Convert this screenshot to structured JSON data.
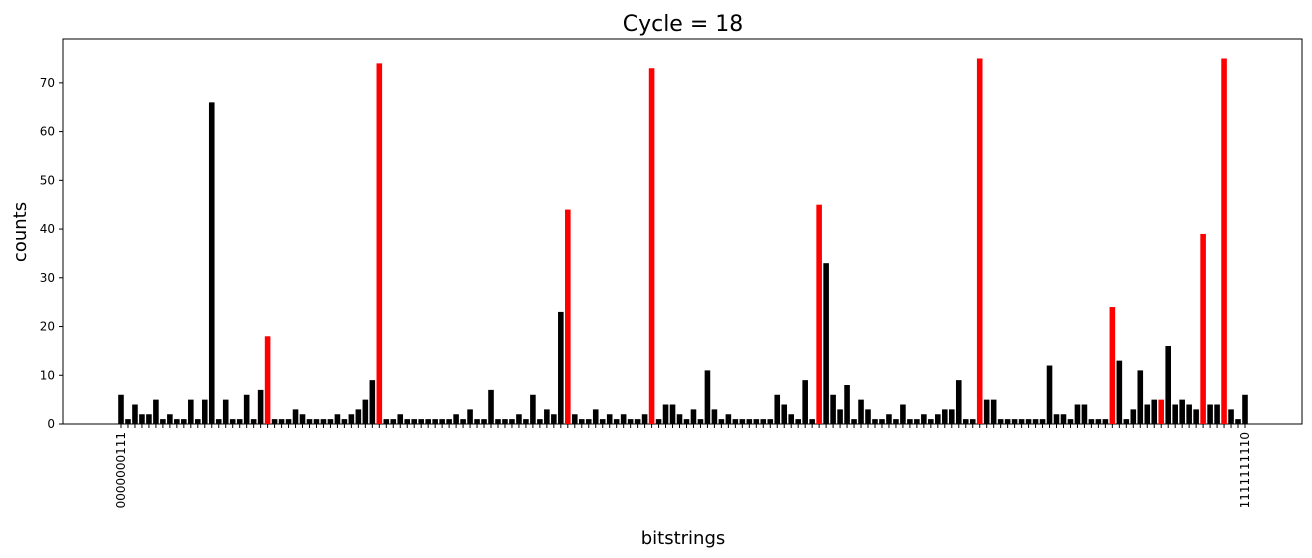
{
  "chart_data": {
    "type": "bar",
    "title": "Cycle = 18",
    "xlabel": "bitstrings",
    "ylabel": "counts",
    "categories": [
      "0000000111",
      null,
      null,
      null,
      null,
      null,
      null,
      null,
      null,
      null,
      null,
      null,
      null,
      null,
      null,
      null,
      null,
      null,
      null,
      null,
      null,
      null,
      null,
      null,
      null,
      null,
      null,
      null,
      null,
      null,
      null,
      null,
      null,
      null,
      null,
      null,
      null,
      null,
      null,
      null,
      null,
      null,
      null,
      null,
      null,
      null,
      null,
      null,
      null,
      null,
      null,
      null,
      null,
      null,
      null,
      null,
      null,
      null,
      null,
      null,
      null,
      null,
      null,
      null,
      null,
      null,
      null,
      null,
      null,
      null,
      null,
      null,
      null,
      null,
      null,
      null,
      null,
      null,
      null,
      null,
      null,
      null,
      null,
      null,
      null,
      null,
      null,
      null,
      null,
      null,
      null,
      null,
      null,
      null,
      null,
      null,
      null,
      null,
      null,
      null,
      null,
      null,
      null,
      null,
      null,
      null,
      null,
      null,
      null,
      null,
      null,
      null,
      null,
      null,
      null,
      null,
      null,
      null,
      null,
      null,
      null,
      null,
      null,
      null,
      null,
      null,
      null,
      null,
      null,
      null,
      null,
      null,
      null,
      null,
      null,
      null,
      null,
      null,
      null,
      null,
      null,
      null,
      null,
      null,
      null,
      null,
      null,
      null,
      null,
      null,
      null,
      null,
      null,
      null,
      null,
      null,
      null,
      null,
      null,
      null,
      null,
      "1111111110"
    ],
    "values": [
      6,
      1,
      4,
      2,
      2,
      5,
      1,
      2,
      1,
      1,
      5,
      1,
      5,
      66,
      1,
      5,
      1,
      1,
      6,
      1,
      7,
      18,
      1,
      1,
      1,
      3,
      2,
      1,
      1,
      1,
      1,
      2,
      1,
      2,
      3,
      5,
      9,
      74,
      1,
      1,
      2,
      1,
      1,
      1,
      1,
      1,
      1,
      1,
      2,
      1,
      3,
      1,
      1,
      7,
      1,
      1,
      1,
      2,
      1,
      6,
      1,
      3,
      2,
      23,
      44,
      2,
      1,
      1,
      3,
      1,
      2,
      1,
      2,
      1,
      1,
      2,
      73,
      1,
      4,
      4,
      2,
      1,
      3,
      1,
      11,
      3,
      1,
      2,
      1,
      1,
      1,
      1,
      1,
      1,
      6,
      4,
      2,
      1,
      9,
      1,
      45,
      33,
      6,
      3,
      8,
      1,
      5,
      3,
      1,
      1,
      2,
      1,
      4,
      1,
      1,
      2,
      1,
      2,
      3,
      3,
      9,
      1,
      1,
      75,
      5,
      5,
      1,
      1,
      1,
      1,
      1,
      1,
      1,
      12,
      2,
      2,
      1,
      4,
      4,
      1,
      1,
      1,
      24,
      13,
      1,
      3,
      11,
      4,
      5,
      5,
      16,
      4,
      5,
      4,
      3,
      39,
      4,
      4,
      75,
      3,
      1,
      6
    ],
    "colors": [
      "black",
      "black",
      "black",
      "black",
      "black",
      "black",
      "black",
      "black",
      "black",
      "black",
      "black",
      "black",
      "black",
      "black",
      "black",
      "black",
      "black",
      "black",
      "black",
      "black",
      "black",
      "red",
      "black",
      "black",
      "black",
      "black",
      "black",
      "black",
      "black",
      "black",
      "black",
      "black",
      "black",
      "black",
      "black",
      "black",
      "black",
      "red",
      "black",
      "black",
      "black",
      "black",
      "black",
      "black",
      "black",
      "black",
      "black",
      "black",
      "black",
      "black",
      "black",
      "black",
      "black",
      "black",
      "black",
      "black",
      "black",
      "black",
      "black",
      "black",
      "black",
      "black",
      "black",
      "black",
      "red",
      "black",
      "black",
      "black",
      "black",
      "black",
      "black",
      "black",
      "black",
      "black",
      "black",
      "black",
      "red",
      "black",
      "black",
      "black",
      "black",
      "black",
      "black",
      "black",
      "black",
      "black",
      "black",
      "black",
      "black",
      "black",
      "black",
      "black",
      "black",
      "black",
      "black",
      "black",
      "black",
      "black",
      "black",
      "black",
      "red",
      "black",
      "black",
      "black",
      "black",
      "black",
      "black",
      "black",
      "black",
      "black",
      "black",
      "black",
      "black",
      "black",
      "black",
      "black",
      "black",
      "black",
      "black",
      "black",
      "black",
      "black",
      "black",
      "red",
      "black",
      "black",
      "black",
      "black",
      "black",
      "black",
      "black",
      "black",
      "black",
      "black",
      "black",
      "black",
      "black",
      "black",
      "black",
      "black",
      "black",
      "black",
      "red",
      "black",
      "black",
      "black",
      "black",
      "black",
      "black",
      "red",
      "black",
      "black",
      "black",
      "black",
      "black",
      "red",
      "black",
      "black",
      "red",
      "black",
      "black",
      "black"
    ],
    "ylim": [
      0,
      79
    ],
    "yticks": [
      0,
      10,
      20,
      30,
      40,
      50,
      60,
      70
    ]
  }
}
